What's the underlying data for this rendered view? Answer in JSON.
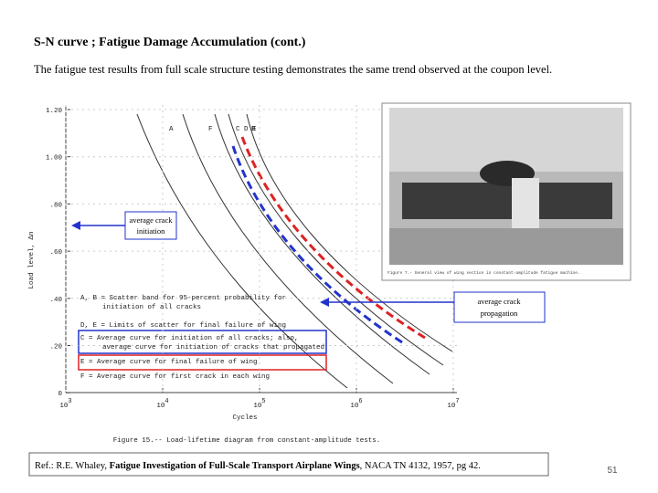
{
  "slide": {
    "title": "S-N curve ; Fatigue Damage Accumulation  (cont.)",
    "text": "The fatigue test results from full scale structure testing demonstrates the same trend observed at the coupon level.",
    "figure": {
      "y_axis_label": "Load level, Δn",
      "y_ticks": [
        "1.20",
        "1.00",
        ".80",
        ".60",
        ".40",
        ".20",
        "0"
      ],
      "x_ticks": [
        {
          "base": "10",
          "exp": "3"
        },
        {
          "base": "10",
          "exp": "4"
        },
        {
          "base": "10",
          "exp": "5"
        },
        {
          "base": "10",
          "exp": "6"
        },
        {
          "base": "10",
          "exp": "7"
        }
      ],
      "x_axis_label": "Cycles",
      "curve_labels": [
        "A",
        "F",
        "C D E",
        "B"
      ],
      "legend": [
        "A, B = Scatter band for 95-percent probability for",
        "initiation of all cracks",
        "D, E = Limits of scatter for final failure of wing",
        "C = Average curve for initiation of all cracks; also,",
        "average curve for initiation of cracks that propagated",
        "E = Average curve for final failure of wing",
        "F = Average curve for first crack in each wing"
      ],
      "caption": "Figure 15.-- Load-lifetime diagram from constant-amplitude tests."
    },
    "photo_caption": "Figure 7.- General view of wing section in constant-amplitude fatigue machine.",
    "annotations": {
      "initiation": [
        "average crack",
        "initiation"
      ],
      "propagation": [
        "average crack",
        "propagation"
      ]
    },
    "reference": {
      "prefix": "Ref.: R.E. Whaley, ",
      "title": "Fatigue Investigation of Full-Scale Transport Airplane Wings",
      "suffix": ", NACA TN 4132, 1957, pg 42."
    },
    "page_number": "51"
  }
}
